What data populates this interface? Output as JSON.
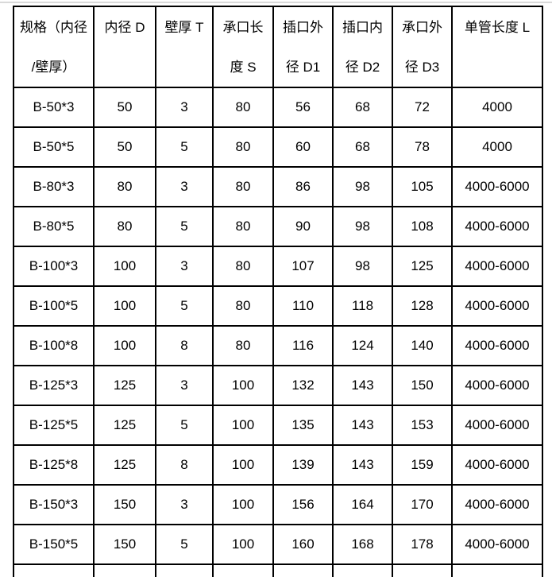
{
  "page": {
    "background": "#ffffff",
    "top_rule_color": "#d9d9d9"
  },
  "table": {
    "border_color": "#000000",
    "text_color": "#000000",
    "column_keys": [
      "spec",
      "d",
      "t",
      "s",
      "d1",
      "d2",
      "d3",
      "l"
    ],
    "columns": {
      "spec": {
        "line1": "规格（内径",
        "line2": "/壁厚）"
      },
      "d": {
        "line1": "内径 D",
        "line2": ""
      },
      "t": {
        "line1": "壁厚 T",
        "line2": ""
      },
      "s": {
        "line1": "承口长",
        "line2": "度 S"
      },
      "d1": {
        "line1": "插口外",
        "line2": "径 D1"
      },
      "d2": {
        "line1": "插口内",
        "line2": "径 D2"
      },
      "d3": {
        "line1": "承口外",
        "line2": "径 D3"
      },
      "l": {
        "line1": "单管长度 L",
        "line2": ""
      }
    },
    "rows": [
      {
        "spec": "B-50*3",
        "d": "50",
        "t": "3",
        "s": "80",
        "d1": "56",
        "d2": "68",
        "d3": "72",
        "l": "4000"
      },
      {
        "spec": "B-50*5",
        "d": "50",
        "t": "5",
        "s": "80",
        "d1": "60",
        "d2": "68",
        "d3": "78",
        "l": "4000"
      },
      {
        "spec": "B-80*3",
        "d": "80",
        "t": "3",
        "s": "80",
        "d1": "86",
        "d2": "98",
        "d3": "105",
        "l": "4000-6000"
      },
      {
        "spec": "B-80*5",
        "d": "80",
        "t": "5",
        "s": "80",
        "d1": "90",
        "d2": "98",
        "d3": "108",
        "l": "4000-6000"
      },
      {
        "spec": "B-100*3",
        "d": "100",
        "t": "3",
        "s": "80",
        "d1": "107",
        "d2": "98",
        "d3": "125",
        "l": "4000-6000"
      },
      {
        "spec": "B-100*5",
        "d": "100",
        "t": "5",
        "s": "80",
        "d1": "110",
        "d2": "118",
        "d3": "128",
        "l": "4000-6000"
      },
      {
        "spec": "B-100*8",
        "d": "100",
        "t": "8",
        "s": "80",
        "d1": "116",
        "d2": "124",
        "d3": "140",
        "l": "4000-6000"
      },
      {
        "spec": "B-125*3",
        "d": "125",
        "t": "3",
        "s": "100",
        "d1": "132",
        "d2": "143",
        "d3": "150",
        "l": "4000-6000"
      },
      {
        "spec": "B-125*5",
        "d": "125",
        "t": "5",
        "s": "100",
        "d1": "135",
        "d2": "143",
        "d3": "153",
        "l": "4000-6000"
      },
      {
        "spec": "B-125*8",
        "d": "125",
        "t": "8",
        "s": "100",
        "d1": "139",
        "d2": "143",
        "d3": "159",
        "l": "4000-6000"
      },
      {
        "spec": "B-150*3",
        "d": "150",
        "t": "3",
        "s": "100",
        "d1": "156",
        "d2": "164",
        "d3": "170",
        "l": "4000-6000"
      },
      {
        "spec": "B-150*5",
        "d": "150",
        "t": "5",
        "s": "100",
        "d1": "160",
        "d2": "168",
        "d3": "178",
        "l": "4000-6000"
      }
    ]
  }
}
